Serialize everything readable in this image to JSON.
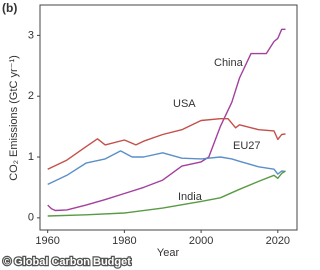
{
  "chart_data": {
    "type": "line",
    "panel_label": "(b)",
    "x_label": "Year",
    "y_label": "CO₂ Emissions (GtC yr⁻¹)",
    "footer": "© Global Carbon Budget",
    "xlim": [
      1958,
      2025
    ],
    "xticks": [
      1960,
      1980,
      2000,
      2020
    ],
    "ylim": [
      -0.2,
      3.5
    ],
    "yticks": [
      0,
      1,
      2,
      3
    ],
    "series": [
      {
        "name": "China",
        "color": "#a3409d",
        "x": [
          1960,
          1961,
          1962,
          1965,
          1970,
          1975,
          1980,
          1985,
          1990,
          1995,
          2000,
          2002,
          2005,
          2008,
          2010,
          2013,
          2015,
          2017,
          2019,
          2020,
          2021,
          2022
        ],
        "values": [
          0.21,
          0.15,
          0.12,
          0.13,
          0.21,
          0.3,
          0.4,
          0.5,
          0.62,
          0.85,
          0.92,
          1.0,
          1.5,
          1.9,
          2.3,
          2.7,
          2.7,
          2.7,
          2.9,
          2.95,
          3.1,
          3.1
        ]
      },
      {
        "name": "USA",
        "color": "#c4504b",
        "x": [
          1960,
          1965,
          1970,
          1973,
          1975,
          1980,
          1983,
          1985,
          1990,
          1995,
          2000,
          2005,
          2007,
          2009,
          2010,
          2015,
          2019,
          2020,
          2021,
          2022
        ],
        "values": [
          0.8,
          0.95,
          1.17,
          1.3,
          1.2,
          1.28,
          1.2,
          1.26,
          1.37,
          1.45,
          1.6,
          1.63,
          1.63,
          1.48,
          1.53,
          1.45,
          1.43,
          1.29,
          1.37,
          1.38
        ]
      },
      {
        "name": "EU27",
        "color": "#5b8fc9",
        "x": [
          1960,
          1965,
          1970,
          1975,
          1979,
          1982,
          1985,
          1990,
          1995,
          2000,
          2005,
          2008,
          2010,
          2015,
          2019,
          2020,
          2021,
          2022
        ],
        "values": [
          0.55,
          0.7,
          0.9,
          0.97,
          1.1,
          1.0,
          1.0,
          1.07,
          0.98,
          0.97,
          1.0,
          0.97,
          0.93,
          0.84,
          0.8,
          0.72,
          0.77,
          0.76
        ]
      },
      {
        "name": "India",
        "color": "#5a9a45",
        "x": [
          1960,
          1970,
          1980,
          1990,
          2000,
          2005,
          2010,
          2015,
          2019,
          2020,
          2021,
          2022
        ],
        "values": [
          0.03,
          0.05,
          0.08,
          0.16,
          0.27,
          0.33,
          0.47,
          0.6,
          0.7,
          0.65,
          0.73,
          0.77
        ]
      }
    ]
  }
}
